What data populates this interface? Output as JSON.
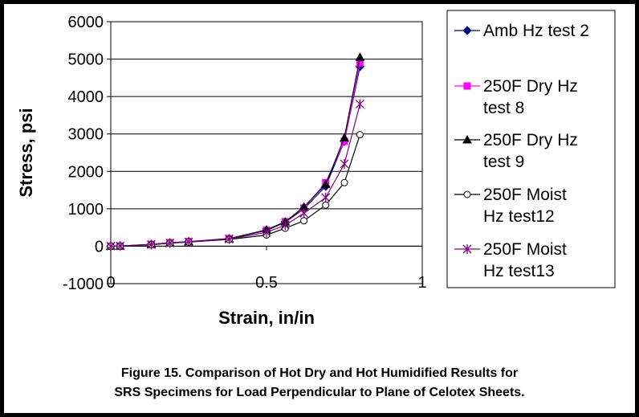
{
  "caption": {
    "line1": "Figure 15.  Comparison of Hot Dry and Hot Humidified Results for",
    "line2": "SRS Specimens for Load Perpendicular to Plane of Celotex Sheets."
  },
  "chart_data": {
    "type": "line",
    "title": "",
    "xlabel": "Strain, in/in",
    "ylabel": "Stress, psi",
    "xlim": [
      0,
      1
    ],
    "ylim": [
      -1000,
      6000
    ],
    "x_ticks": [
      "0",
      "0.5",
      "1"
    ],
    "x_tick_values": [
      0,
      0.5,
      1
    ],
    "y_ticks": [
      "6000",
      "5000",
      "4000",
      "3000",
      "2000",
      "1000",
      "0",
      "-1000"
    ],
    "y_tick_values": [
      6000,
      5000,
      4000,
      3000,
      2000,
      1000,
      0,
      -1000
    ],
    "grid": "horizontal",
    "legend_position": "right",
    "series": [
      {
        "name": "Amb Hz test 2",
        "color": "#000080",
        "marker": "diamond",
        "points": [
          [
            0,
            0
          ],
          [
            0.03,
            5
          ],
          [
            0.13,
            50
          ],
          [
            0.19,
            90
          ],
          [
            0.25,
            120
          ],
          [
            0.38,
            200
          ],
          [
            0.5,
            420
          ],
          [
            0.56,
            640
          ],
          [
            0.62,
            1000
          ],
          [
            0.69,
            1600
          ],
          [
            0.75,
            2800
          ],
          [
            0.8,
            4800
          ]
        ]
      },
      {
        "name": "250F Dry Hz test 8",
        "color": "#ff00ff",
        "marker": "square",
        "points": [
          [
            0,
            0
          ],
          [
            0.03,
            5
          ],
          [
            0.13,
            50
          ],
          [
            0.19,
            95
          ],
          [
            0.25,
            125
          ],
          [
            0.38,
            205
          ],
          [
            0.5,
            430
          ],
          [
            0.56,
            660
          ],
          [
            0.62,
            1020
          ],
          [
            0.69,
            1700
          ],
          [
            0.75,
            2800
          ],
          [
            0.8,
            4900
          ]
        ]
      },
      {
        "name": "250F Dry Hz test 9",
        "color": "#000000",
        "marker": "triangle",
        "points": [
          [
            0,
            0
          ],
          [
            0.03,
            5
          ],
          [
            0.13,
            50
          ],
          [
            0.19,
            90
          ],
          [
            0.25,
            120
          ],
          [
            0.38,
            200
          ],
          [
            0.5,
            440
          ],
          [
            0.56,
            650
          ],
          [
            0.62,
            1050
          ],
          [
            0.69,
            1650
          ],
          [
            0.75,
            2900
          ],
          [
            0.8,
            5050
          ]
        ]
      },
      {
        "name": "250F Moist Hz test12",
        "color": "#000000",
        "marker": "circle",
        "points": [
          [
            0,
            0
          ],
          [
            0.03,
            5
          ],
          [
            0.13,
            40
          ],
          [
            0.19,
            80
          ],
          [
            0.25,
            110
          ],
          [
            0.38,
            180
          ],
          [
            0.5,
            300
          ],
          [
            0.56,
            480
          ],
          [
            0.62,
            680
          ],
          [
            0.69,
            1100
          ],
          [
            0.75,
            1700
          ],
          [
            0.8,
            2980
          ]
        ]
      },
      {
        "name": "250F Moist Hz test13",
        "color": "#800080",
        "marker": "star",
        "points": [
          [
            0,
            0
          ],
          [
            0.03,
            5
          ],
          [
            0.13,
            45
          ],
          [
            0.19,
            85
          ],
          [
            0.25,
            115
          ],
          [
            0.38,
            190
          ],
          [
            0.5,
            370
          ],
          [
            0.56,
            560
          ],
          [
            0.62,
            880
          ],
          [
            0.69,
            1300
          ],
          [
            0.75,
            2200
          ],
          [
            0.8,
            3800
          ]
        ]
      }
    ]
  },
  "legend": {
    "entries": [
      {
        "lines": [
          "Amb Hz test 2"
        ]
      },
      {
        "lines": [
          "250F Dry Hz",
          "test 8"
        ]
      },
      {
        "lines": [
          "250F Dry Hz",
          "test 9"
        ]
      },
      {
        "lines": [
          "250F Moist",
          "Hz test12"
        ]
      },
      {
        "lines": [
          "250F Moist",
          "Hz test13"
        ]
      }
    ]
  }
}
